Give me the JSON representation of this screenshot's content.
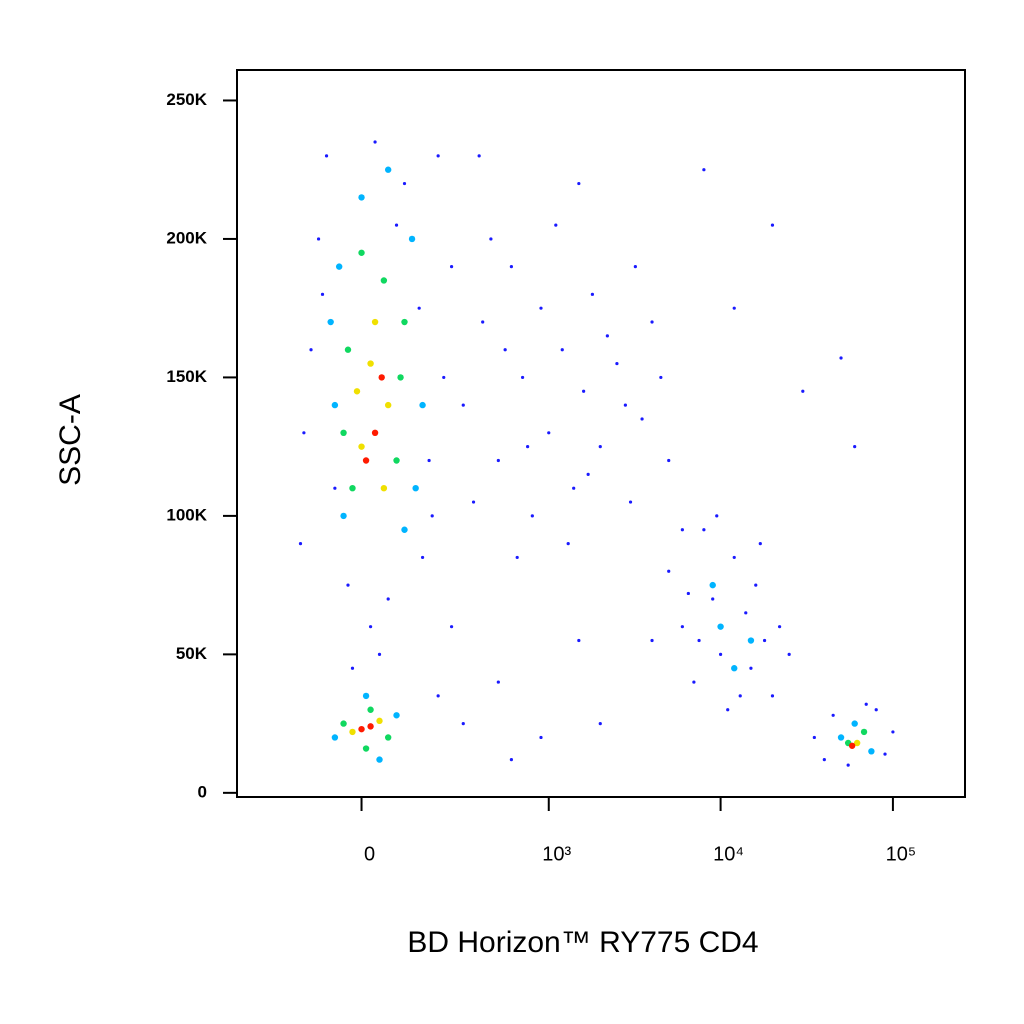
{
  "chart_data": {
    "type": "scatter",
    "x_label": "BD Horizon™ RY775 CD4",
    "y_label": "SSC-A",
    "xscale": "biexponential",
    "xlim": [
      -420,
      262000
    ],
    "xticks": [
      0,
      {
        "value": 1000,
        "label": "10³"
      },
      {
        "value": 10000,
        "label": "10⁴"
      },
      {
        "value": 100000,
        "label": "10⁵"
      }
    ],
    "ylim": [
      -1500,
      261000
    ],
    "yticks": [
      0,
      {
        "value": 50000,
        "label": "50K"
      },
      {
        "value": 100000,
        "label": "100K"
      },
      {
        "value": 150000,
        "label": "150K"
      },
      {
        "value": 200000,
        "label": "200K"
      },
      {
        "value": 250000,
        "label": "250K"
      }
    ],
    "series": [
      {
        "color": "#1a1aff",
        "x": [
          -150,
          -120,
          -100,
          -80,
          -60,
          -140,
          180,
          220,
          250,
          200,
          150,
          -30,
          60,
          20,
          40,
          -20,
          100,
          -90,
          170,
          140,
          30,
          80,
          300,
          400,
          500,
          600,
          700,
          800,
          900,
          1000,
          1200,
          1400,
          1600,
          1800,
          2000,
          2500,
          3000,
          3500,
          4000,
          5000,
          6000,
          350,
          450,
          550,
          650,
          750,
          1100,
          1300,
          1700,
          2200,
          2800,
          3200,
          4500,
          380,
          1500,
          8000,
          12000,
          20000,
          50000,
          60000,
          30000,
          250,
          500,
          900,
          2000,
          4000,
          300,
          600,
          1500,
          200,
          5000,
          6000,
          7000,
          8000,
          9000,
          10000,
          11000,
          12000,
          14000,
          15000,
          16000,
          18000,
          20000,
          22000,
          25000,
          7500,
          9500,
          13000,
          6500,
          17000,
          35000,
          40000,
          45000,
          80000,
          90000,
          100000,
          55000,
          70000
        ],
        "values": [
          90000,
          160000,
          200000,
          230000,
          110000,
          130000,
          100000,
          150000,
          190000,
          230000,
          85000,
          75000,
          70000,
          60000,
          50000,
          45000,
          220000,
          180000,
          120000,
          175000,
          235000,
          205000,
          140000,
          170000,
          120000,
          190000,
          150000,
          100000,
          175000,
          130000,
          160000,
          110000,
          145000,
          180000,
          125000,
          155000,
          105000,
          135000,
          170000,
          120000,
          95000,
          105000,
          200000,
          160000,
          85000,
          125000,
          205000,
          90000,
          115000,
          165000,
          140000,
          190000,
          150000,
          230000,
          220000,
          225000,
          175000,
          205000,
          157000,
          125000,
          145000,
          60000,
          40000,
          20000,
          25000,
          55000,
          25000,
          12000,
          55000,
          35000,
          80000,
          60000,
          40000,
          95000,
          70000,
          50000,
          30000,
          85000,
          65000,
          45000,
          75000,
          55000,
          35000,
          60000,
          50000,
          55000,
          100000,
          35000,
          72000,
          90000,
          20000,
          12000,
          28000,
          30000,
          14000,
          22000,
          10000,
          32000
        ]
      },
      {
        "color": "#00b4ff",
        "x": [
          -40,
          100,
          -60,
          150,
          -50,
          120,
          0,
          60,
          -70,
          130,
          -60,
          80,
          10,
          40,
          10000,
          12000,
          9000,
          15000,
          50000,
          75000,
          60000
        ],
        "values": [
          100000,
          95000,
          140000,
          140000,
          190000,
          200000,
          215000,
          225000,
          170000,
          110000,
          20000,
          28000,
          35000,
          12000,
          60000,
          45000,
          75000,
          55000,
          20000,
          15000,
          25000
        ]
      },
      {
        "color": "#10d860",
        "x": [
          -20,
          80,
          -30,
          100,
          0,
          50,
          -40,
          90,
          -40,
          60,
          20,
          10,
          55000,
          68000
        ],
        "values": [
          110000,
          120000,
          160000,
          170000,
          195000,
          185000,
          130000,
          150000,
          25000,
          20000,
          30000,
          16000,
          18000,
          22000
        ]
      },
      {
        "color": "#f0e000",
        "x": [
          0,
          60,
          20,
          -10,
          50,
          30,
          -20,
          40,
          62000
        ],
        "values": [
          125000,
          140000,
          155000,
          145000,
          110000,
          170000,
          22000,
          26000,
          18000
        ]
      },
      {
        "color": "#ff1a00",
        "x": [
          30,
          10,
          45,
          0,
          20,
          58000
        ],
        "values": [
          130000,
          120000,
          150000,
          23000,
          24000,
          17000
        ]
      }
    ]
  }
}
